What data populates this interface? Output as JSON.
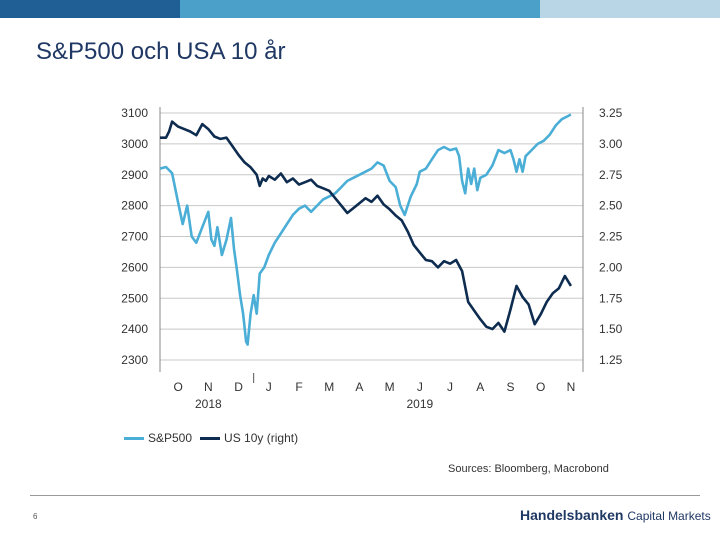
{
  "header": {
    "title": "S&P500 och USA 10 år",
    "bar_colors": [
      "#1f5f95",
      "#1f5f95",
      "#4aa0c8",
      "#4aa0c8",
      "#b8d6e6"
    ]
  },
  "chart_data": {
    "type": "line",
    "x_months": [
      "O",
      "N",
      "D",
      "J",
      "F",
      "M",
      "A",
      "M",
      "J",
      "J",
      "A",
      "S",
      "O",
      "N"
    ],
    "x_years": [
      {
        "label": "2018",
        "month_index": 1
      },
      {
        "label": "2019",
        "month_index": 8
      }
    ],
    "y_left_ticks": [
      "3100",
      "3000",
      "2900",
      "2800",
      "2700",
      "2600",
      "2500",
      "2400",
      "2300"
    ],
    "y_right_ticks": [
      "3.25",
      "3.00",
      "2.75",
      "2.50",
      "2.25",
      "2.00",
      "1.75",
      "1.50",
      "1.25"
    ],
    "ylim_left": [
      2300,
      3100
    ],
    "ylim_right": [
      1.25,
      3.25
    ],
    "xlim": [
      -0.6,
      13.4
    ],
    "series": [
      {
        "name": "S&P500",
        "axis": "left",
        "color": "#4aaed6",
        "points": [
          [
            -0.6,
            2920
          ],
          [
            -0.4,
            2925
          ],
          [
            -0.2,
            2905
          ],
          [
            0.0,
            2810
          ],
          [
            0.15,
            2740
          ],
          [
            0.3,
            2800
          ],
          [
            0.45,
            2700
          ],
          [
            0.6,
            2680
          ],
          [
            0.8,
            2730
          ],
          [
            1.0,
            2780
          ],
          [
            1.1,
            2690
          ],
          [
            1.2,
            2670
          ],
          [
            1.3,
            2730
          ],
          [
            1.45,
            2640
          ],
          [
            1.6,
            2690
          ],
          [
            1.75,
            2760
          ],
          [
            1.85,
            2660
          ],
          [
            1.95,
            2590
          ],
          [
            2.05,
            2510
          ],
          [
            2.15,
            2450
          ],
          [
            2.25,
            2360
          ],
          [
            2.3,
            2350
          ],
          [
            2.4,
            2450
          ],
          [
            2.5,
            2510
          ],
          [
            2.6,
            2450
          ],
          [
            2.7,
            2580
          ],
          [
            2.85,
            2600
          ],
          [
            3.0,
            2640
          ],
          [
            3.2,
            2680
          ],
          [
            3.4,
            2710
          ],
          [
            3.6,
            2740
          ],
          [
            3.8,
            2770
          ],
          [
            4.0,
            2790
          ],
          [
            4.2,
            2800
          ],
          [
            4.4,
            2780
          ],
          [
            4.6,
            2800
          ],
          [
            4.8,
            2820
          ],
          [
            5.0,
            2830
          ],
          [
            5.2,
            2840
          ],
          [
            5.4,
            2860
          ],
          [
            5.6,
            2880
          ],
          [
            5.8,
            2890
          ],
          [
            6.0,
            2900
          ],
          [
            6.2,
            2910
          ],
          [
            6.4,
            2920
          ],
          [
            6.6,
            2940
          ],
          [
            6.8,
            2930
          ],
          [
            7.0,
            2880
          ],
          [
            7.2,
            2860
          ],
          [
            7.35,
            2800
          ],
          [
            7.5,
            2770
          ],
          [
            7.7,
            2830
          ],
          [
            7.9,
            2870
          ],
          [
            8.0,
            2910
          ],
          [
            8.2,
            2920
          ],
          [
            8.4,
            2950
          ],
          [
            8.6,
            2980
          ],
          [
            8.8,
            2990
          ],
          [
            9.0,
            2980
          ],
          [
            9.2,
            2985
          ],
          [
            9.3,
            2960
          ],
          [
            9.4,
            2880
          ],
          [
            9.5,
            2840
          ],
          [
            9.6,
            2920
          ],
          [
            9.7,
            2870
          ],
          [
            9.8,
            2920
          ],
          [
            9.9,
            2850
          ],
          [
            10.0,
            2890
          ],
          [
            10.2,
            2900
          ],
          [
            10.4,
            2930
          ],
          [
            10.6,
            2980
          ],
          [
            10.8,
            2970
          ],
          [
            11.0,
            2980
          ],
          [
            11.1,
            2950
          ],
          [
            11.2,
            2910
          ],
          [
            11.3,
            2950
          ],
          [
            11.4,
            2910
          ],
          [
            11.5,
            2960
          ],
          [
            11.7,
            2980
          ],
          [
            11.9,
            3000
          ],
          [
            12.1,
            3010
          ],
          [
            12.3,
            3030
          ],
          [
            12.5,
            3060
          ],
          [
            12.7,
            3080
          ],
          [
            12.9,
            3090
          ],
          [
            13.0,
            3095
          ]
        ]
      },
      {
        "name": "US 10y (right)",
        "axis": "right",
        "color": "#0d2c4f",
        "points": [
          [
            -0.6,
            3.05
          ],
          [
            -0.4,
            3.05
          ],
          [
            -0.3,
            3.1
          ],
          [
            -0.2,
            3.18
          ],
          [
            0.0,
            3.14
          ],
          [
            0.2,
            3.12
          ],
          [
            0.4,
            3.1
          ],
          [
            0.6,
            3.07
          ],
          [
            0.8,
            3.16
          ],
          [
            1.0,
            3.12
          ],
          [
            1.2,
            3.06
          ],
          [
            1.4,
            3.04
          ],
          [
            1.6,
            3.05
          ],
          [
            1.8,
            2.98
          ],
          [
            2.0,
            2.91
          ],
          [
            2.2,
            2.85
          ],
          [
            2.4,
            2.81
          ],
          [
            2.6,
            2.75
          ],
          [
            2.7,
            2.66
          ],
          [
            2.8,
            2.72
          ],
          [
            2.9,
            2.7
          ],
          [
            3.0,
            2.74
          ],
          [
            3.2,
            2.71
          ],
          [
            3.4,
            2.76
          ],
          [
            3.6,
            2.69
          ],
          [
            3.8,
            2.72
          ],
          [
            4.0,
            2.67
          ],
          [
            4.2,
            2.69
          ],
          [
            4.4,
            2.71
          ],
          [
            4.6,
            2.66
          ],
          [
            4.8,
            2.64
          ],
          [
            5.0,
            2.62
          ],
          [
            5.2,
            2.56
          ],
          [
            5.4,
            2.5
          ],
          [
            5.6,
            2.44
          ],
          [
            5.8,
            2.48
          ],
          [
            6.0,
            2.52
          ],
          [
            6.2,
            2.56
          ],
          [
            6.4,
            2.53
          ],
          [
            6.6,
            2.58
          ],
          [
            6.8,
            2.51
          ],
          [
            7.0,
            2.47
          ],
          [
            7.2,
            2.42
          ],
          [
            7.4,
            2.38
          ],
          [
            7.6,
            2.29
          ],
          [
            7.8,
            2.18
          ],
          [
            8.0,
            2.12
          ],
          [
            8.2,
            2.06
          ],
          [
            8.4,
            2.05
          ],
          [
            8.6,
            2.0
          ],
          [
            8.8,
            2.05
          ],
          [
            9.0,
            2.03
          ],
          [
            9.2,
            2.06
          ],
          [
            9.4,
            1.97
          ],
          [
            9.6,
            1.72
          ],
          [
            9.8,
            1.65
          ],
          [
            10.0,
            1.58
          ],
          [
            10.2,
            1.52
          ],
          [
            10.4,
            1.5
          ],
          [
            10.6,
            1.55
          ],
          [
            10.8,
            1.48
          ],
          [
            11.0,
            1.66
          ],
          [
            11.2,
            1.85
          ],
          [
            11.4,
            1.76
          ],
          [
            11.6,
            1.7
          ],
          [
            11.8,
            1.54
          ],
          [
            12.0,
            1.62
          ],
          [
            12.2,
            1.72
          ],
          [
            12.4,
            1.79
          ],
          [
            12.6,
            1.83
          ],
          [
            12.8,
            1.93
          ],
          [
            13.0,
            1.85
          ]
        ]
      }
    ],
    "legend": [
      "S&P500",
      "US 10y (right)"
    ],
    "legend_position": "bottom-left",
    "grid": true
  },
  "source_note": "Sources: Bloomberg, Macrobond",
  "footer": {
    "page_number": "6",
    "brand_bold": "Handelsbanken",
    "brand_regular": "Capital Markets"
  }
}
